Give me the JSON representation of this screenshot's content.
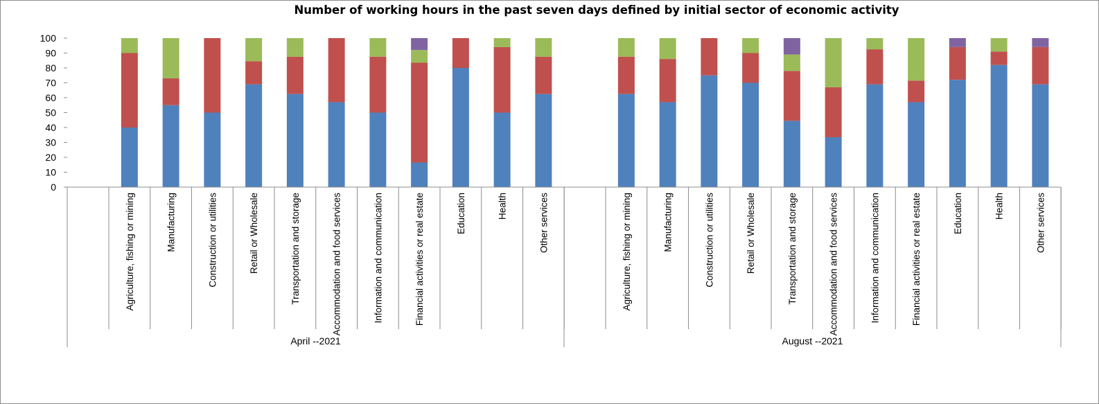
{
  "chart_data": {
    "type": "bar",
    "stacked": true,
    "title": "Number of working hours in the past seven days defined by initial sector of economic activity",
    "xlabel": "",
    "ylabel": "",
    "ylim": [
      0,
      100
    ],
    "yticks": [
      0,
      10,
      20,
      30,
      40,
      50,
      60,
      70,
      80,
      90,
      100
    ],
    "grid": false,
    "legend": "none",
    "groups": [
      {
        "label": "April --2021",
        "categories": [
          "Agriculture, fishing or mining",
          "Manufacturing",
          "Construction or utilities",
          "Retail or Wholesale",
          "Transportation and storage",
          "Accommodation and food services",
          "Information and communication",
          "Financial activities or real estate",
          "Education",
          "Health",
          "Other services"
        ],
        "series": [
          {
            "color": "#4f81bd",
            "values": [
              40,
              55,
              50,
              69,
              62.5,
              57,
              50,
              16.5,
              80,
              50,
              62.5
            ]
          },
          {
            "color": "#c0504d",
            "values": [
              50,
              18,
              50,
              15.5,
              25,
              43,
              37.5,
              67,
              20,
              44,
              25
            ]
          },
          {
            "color": "#9bbb59",
            "values": [
              10,
              27,
              0,
              15.5,
              12.5,
              0,
              12.5,
              8.5,
              0,
              6,
              12.5
            ]
          },
          {
            "color": "#8064a2",
            "values": [
              0,
              0,
              0,
              0,
              0,
              0,
              0,
              8,
              0,
              0,
              0
            ]
          }
        ]
      },
      {
        "label": "August --2021",
        "categories": [
          "Agriculture, fishing or mining",
          "Manufacturing",
          "Construction or utilities",
          "Retail or Wholesale",
          "Transportation and storage",
          "Accommodation and food services",
          "Information and communication",
          "Financial activities or real estate",
          "Education",
          "Health",
          "Other services"
        ],
        "series": [
          {
            "color": "#4f81bd",
            "values": [
              62.5,
              57,
              75,
              70,
              44.5,
              33.5,
              69,
              57,
              72,
              82,
              69
            ]
          },
          {
            "color": "#c0504d",
            "values": [
              25,
              29,
              25,
              20,
              33.5,
              33.5,
              23.5,
              14.5,
              22,
              9,
              25
            ]
          },
          {
            "color": "#9bbb59",
            "values": [
              12.5,
              14,
              0,
              10,
              11,
              33,
              7.5,
              28.5,
              0,
              9,
              0
            ]
          },
          {
            "color": "#8064a2",
            "values": [
              0,
              0,
              0,
              0,
              11,
              0,
              0,
              0,
              6,
              0,
              6
            ]
          }
        ]
      }
    ]
  }
}
